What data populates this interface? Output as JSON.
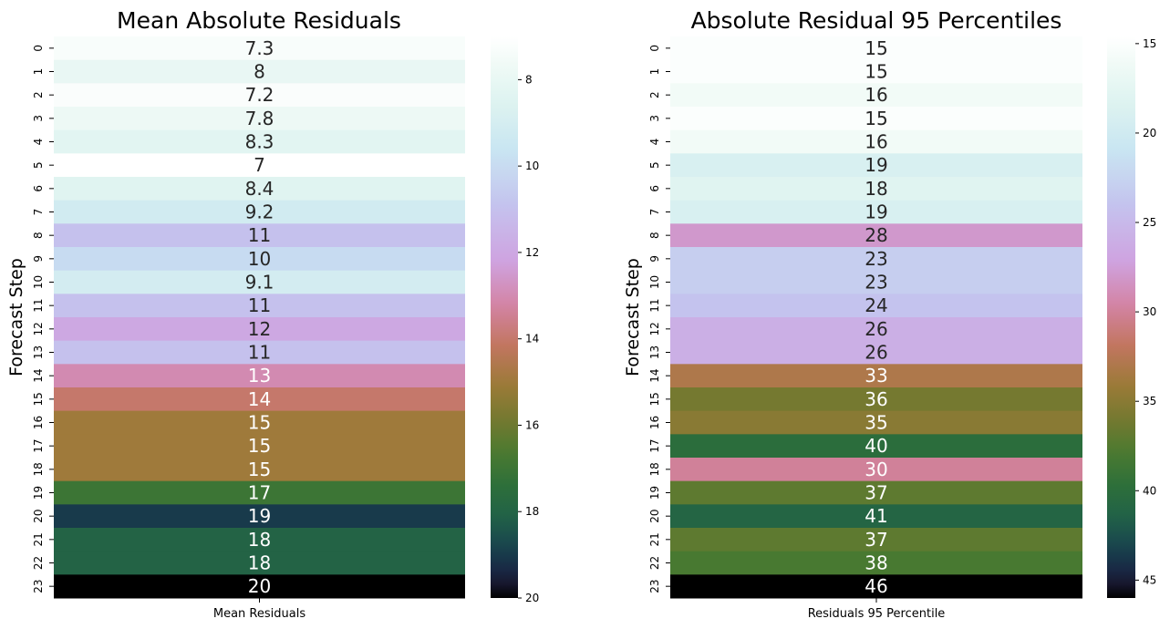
{
  "chart_data": [
    {
      "type": "heatmap",
      "title": "Mean Absolute Residuals",
      "ylabel": "Forecast Step",
      "xlabel": "",
      "categories": [
        "Mean Residuals"
      ],
      "rows": [
        "0",
        "1",
        "2",
        "3",
        "4",
        "5",
        "6",
        "7",
        "8",
        "9",
        "10",
        "11",
        "12",
        "13",
        "14",
        "15",
        "16",
        "17",
        "18",
        "19",
        "20",
        "21",
        "22",
        "23"
      ],
      "values": [
        7.3,
        8.0,
        7.2,
        7.8,
        8.3,
        7.0,
        8.4,
        9.2,
        11,
        10,
        9.1,
        11,
        12,
        11,
        13,
        14,
        15,
        15,
        15,
        17,
        19,
        18,
        18,
        20
      ],
      "labels": [
        "7.3",
        "8",
        "7.2",
        "7.8",
        "8.3",
        "7",
        "8.4",
        "9.2",
        "11",
        "10",
        "9.1",
        "11",
        "12",
        "11",
        "13",
        "14",
        "15",
        "15",
        "15",
        "17",
        "19",
        "18",
        "18",
        "20"
      ],
      "colormap": "cubehelix_r",
      "colorbar": {
        "range": [
          7,
          20
        ],
        "ticks": [
          8,
          10,
          12,
          14,
          16,
          18,
          20
        ],
        "tick_labels": [
          "8",
          "10",
          "12",
          "14",
          "16",
          "18",
          "20"
        ]
      }
    },
    {
      "type": "heatmap",
      "title": "Absolute Residual 95 Percentiles",
      "ylabel": "Forecast Step",
      "xlabel": "",
      "categories": [
        "Residuals 95 Percentile"
      ],
      "rows": [
        "0",
        "1",
        "2",
        "3",
        "4",
        "5",
        "6",
        "7",
        "8",
        "9",
        "10",
        "11",
        "12",
        "13",
        "14",
        "15",
        "16",
        "17",
        "18",
        "19",
        "20",
        "21",
        "22",
        "23"
      ],
      "values": [
        15,
        15,
        16,
        15,
        16,
        19,
        18,
        19,
        28,
        23,
        23,
        24,
        26,
        26,
        33,
        36,
        35,
        40,
        30,
        37,
        41,
        37,
        38,
        46
      ],
      "labels": [
        "15",
        "15",
        "16",
        "15",
        "16",
        "19",
        "18",
        "19",
        "28",
        "23",
        "23",
        "24",
        "26",
        "26",
        "33",
        "36",
        "35",
        "40",
        "30",
        "37",
        "41",
        "37",
        "38",
        "46"
      ],
      "colormap": "cubehelix_r",
      "colorbar": {
        "range": [
          14.6,
          46
        ],
        "ticks": [
          15,
          20,
          25,
          30,
          35,
          40,
          45
        ],
        "tick_labels": [
          "15",
          "20",
          "25",
          "30",
          "35",
          "40",
          "45"
        ]
      }
    }
  ]
}
